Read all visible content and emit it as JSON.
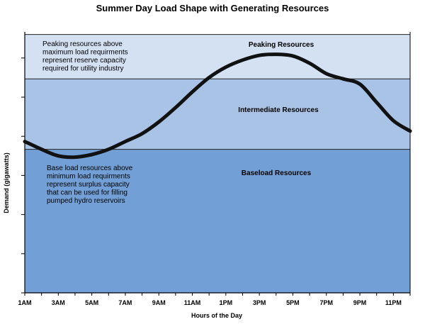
{
  "chart_data": {
    "type": "line",
    "title": "Summer Day Load Shape with Generating Resources",
    "xlabel": "Hours of the Day",
    "ylabel": "Demand (gigawatts)",
    "x_tick_labels": [
      "1AM",
      "3AM",
      "5AM",
      "7AM",
      "9AM",
      "11AM",
      "1PM",
      "3PM",
      "5PM",
      "7PM",
      "9PM",
      "11PM"
    ],
    "x_tick_hours": [
      1,
      3,
      5,
      7,
      9,
      11,
      13,
      15,
      17,
      19,
      21,
      23
    ],
    "xlim": [
      1,
      24
    ],
    "ylim": [
      0,
      100
    ],
    "grid": false,
    "bands": [
      {
        "name": "Baseload Resources",
        "from": 0,
        "to": 55,
        "color": "#729fd5"
      },
      {
        "name": "Intermediate Resources",
        "from": 55,
        "to": 82,
        "color": "#a9c3e6"
      },
      {
        "name": "Peaking Resources",
        "from": 82,
        "to": 99,
        "color": "#d3e1f3"
      }
    ],
    "annotations": {
      "peaking_note": [
        "Peaking resources above",
        "maximum load requirments",
        "represent reserve capacity",
        "required for utility industry"
      ],
      "base_note": [
        "Base load resources above",
        "minimum load requirments",
        "represent surplus capacity",
        "that can be used for filling",
        "pumped hydro reservoirs"
      ]
    },
    "series": [
      {
        "color": "#111111",
        "x": [
          1,
          2,
          3,
          4,
          5,
          6,
          7,
          8,
          9,
          10,
          11,
          12,
          13,
          14,
          15,
          16,
          17,
          18,
          19,
          20,
          21,
          22,
          23,
          24
        ],
        "values": [
          58,
          55,
          52.5,
          52,
          53,
          55,
          58,
          61,
          65.5,
          71,
          77,
          82.5,
          86.5,
          89.2,
          91,
          91.4,
          90.8,
          88,
          84,
          82,
          80,
          73,
          66,
          62
        ]
      }
    ]
  }
}
